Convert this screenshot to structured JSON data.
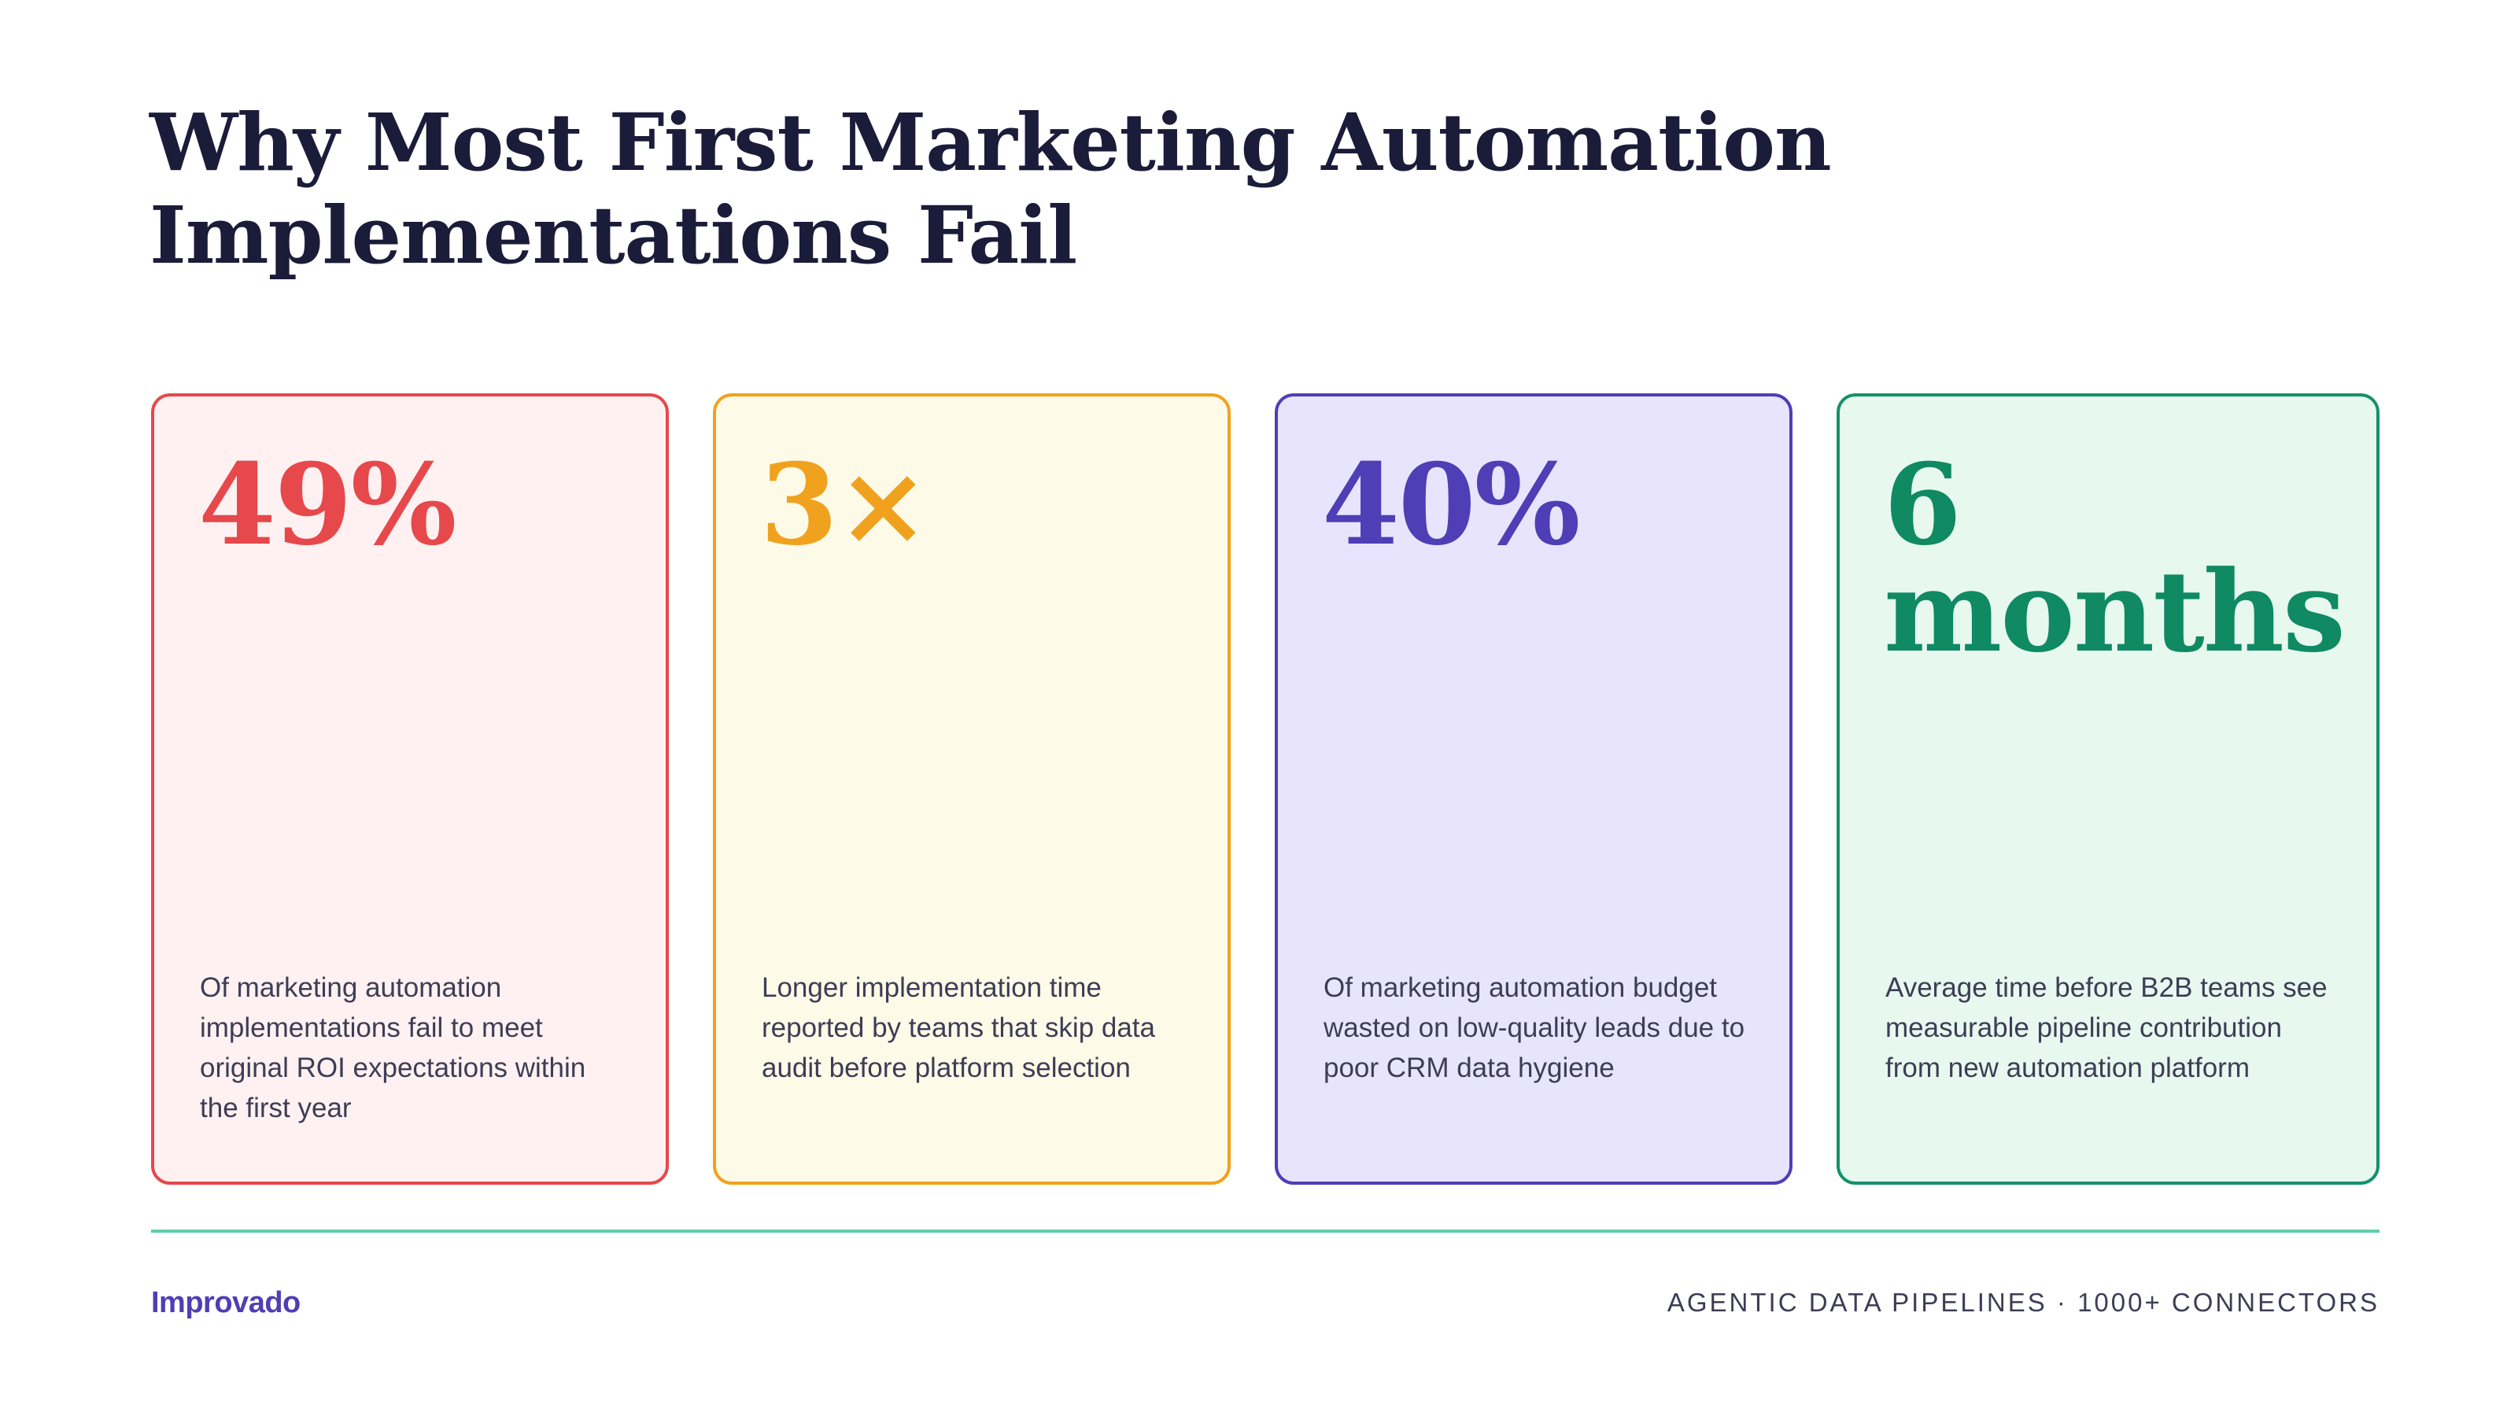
{
  "page": {
    "title": "Why Most First Marketing Automation Implementations Fail"
  },
  "cards": [
    {
      "stat": "49%",
      "description": "Of marketing automation implementations fail to meet original ROI expectations within the first year",
      "accent_color": "#e6484c",
      "background_color": "#fff1f1"
    },
    {
      "stat": "3×",
      "description": "Longer implementation time reported by teams that skip data audit before platform selection",
      "accent_color": "#f0a21e",
      "background_color": "#fdfae8"
    },
    {
      "stat": "40%",
      "description": "Of marketing automation budget wasted on low-quality leads due to poor CRM data hygiene",
      "accent_color": "#4f3eb5",
      "background_color": "#e8e4fe"
    },
    {
      "stat": "6 months",
      "description": "Average time before B2B teams see measurable pipeline contribution from new automation platform",
      "accent_color": "#0f8a63",
      "background_color": "#e7f8ef"
    }
  ],
  "footer": {
    "brand": "Improvado",
    "tagline": "AGENTIC DATA PIPELINES · 1000+ CONNECTORS",
    "divider_color": "#5fcfa8"
  }
}
